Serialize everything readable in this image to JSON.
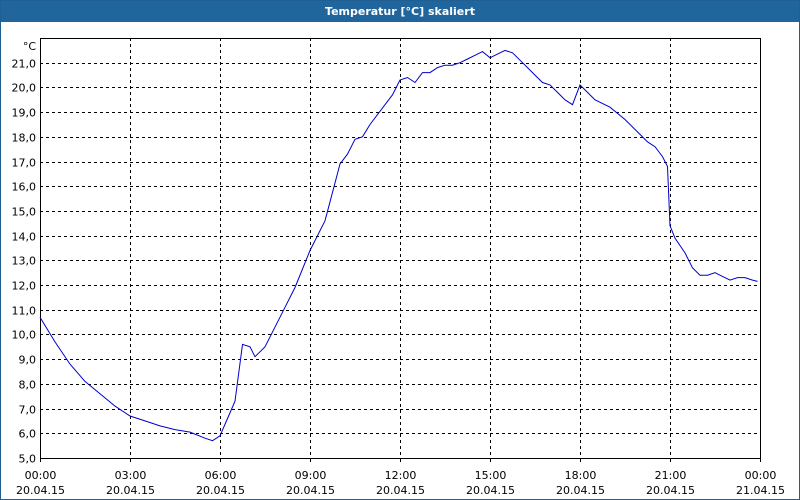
{
  "window": {
    "title": "Temperatur [°C] skaliert"
  },
  "chart_data": {
    "type": "line",
    "title": "Temperatur [°C] skaliert",
    "ylabel": "°C",
    "xlabel": "",
    "ylim": [
      5.0,
      22.0
    ],
    "grid": true,
    "line_color": "#0000cc",
    "grid_color": "#000000",
    "y_ticks": [
      "5,0",
      "6,0",
      "7,0",
      "8,0",
      "9,0",
      "10,0",
      "11,0",
      "12,0",
      "13,0",
      "14,0",
      "15,0",
      "16,0",
      "17,0",
      "18,0",
      "19,0",
      "20,0",
      "21,0"
    ],
    "x_ticks": [
      {
        "time": "00:00",
        "date": "20.04.15"
      },
      {
        "time": "03:00",
        "date": "20.04.15"
      },
      {
        "time": "06:00",
        "date": "20.04.15"
      },
      {
        "time": "09:00",
        "date": "20.04.15"
      },
      {
        "time": "12:00",
        "date": "20.04.15"
      },
      {
        "time": "15:00",
        "date": "20.04.15"
      },
      {
        "time": "18:00",
        "date": "20.04.15"
      },
      {
        "time": "21:00",
        "date": "20.04.15"
      },
      {
        "time": "00:00",
        "date": "21.04.15"
      }
    ],
    "series": [
      {
        "x": [
          "00:00",
          "00:30",
          "01:00",
          "01:30",
          "02:00",
          "02:30",
          "03:00",
          "03:30",
          "04:00",
          "04:30",
          "05:00",
          "05:30",
          "05:45",
          "06:00",
          "06:15",
          "06:30",
          "06:45",
          "07:00",
          "07:10",
          "07:30",
          "08:00",
          "08:30",
          "09:00",
          "09:30",
          "10:00",
          "10:15",
          "10:30",
          "10:45",
          "11:00",
          "11:15",
          "11:30",
          "11:45",
          "12:00",
          "12:15",
          "12:30",
          "12:45",
          "13:00",
          "13:15",
          "13:30",
          "13:45",
          "14:00",
          "14:15",
          "14:30",
          "14:45",
          "15:00",
          "15:15",
          "15:30",
          "15:45",
          "16:00",
          "16:15",
          "16:30",
          "16:45",
          "17:00",
          "17:15",
          "17:30",
          "17:45",
          "18:00",
          "18:10",
          "18:30",
          "19:00",
          "19:30",
          "20:00",
          "20:15",
          "20:30",
          "20:45",
          "20:55",
          "21:00",
          "21:10",
          "21:30",
          "21:45",
          "22:00",
          "22:15",
          "22:30",
          "22:45",
          "23:00",
          "23:15",
          "23:30",
          "23:45",
          "23:55"
        ],
        "y": [
          10.7,
          9.7,
          8.8,
          8.1,
          7.6,
          7.1,
          6.7,
          6.5,
          6.3,
          6.15,
          6.05,
          5.8,
          5.7,
          5.9,
          6.6,
          7.3,
          9.6,
          9.5,
          9.1,
          9.5,
          10.7,
          11.9,
          13.4,
          14.6,
          16.9,
          17.3,
          17.9,
          18.0,
          18.5,
          18.9,
          19.3,
          19.7,
          20.3,
          20.4,
          20.2,
          20.6,
          20.6,
          20.8,
          20.9,
          20.9,
          21.0,
          21.15,
          21.3,
          21.45,
          21.2,
          21.35,
          21.5,
          21.4,
          21.1,
          20.8,
          20.5,
          20.2,
          20.1,
          19.8,
          19.5,
          19.3,
          20.1,
          19.9,
          19.5,
          19.2,
          18.7,
          18.1,
          17.8,
          17.6,
          17.2,
          16.8,
          14.4,
          13.9,
          13.3,
          12.7,
          12.4,
          12.4,
          12.5,
          12.35,
          12.2,
          12.3,
          12.3,
          12.2,
          12.15
        ]
      }
    ]
  }
}
